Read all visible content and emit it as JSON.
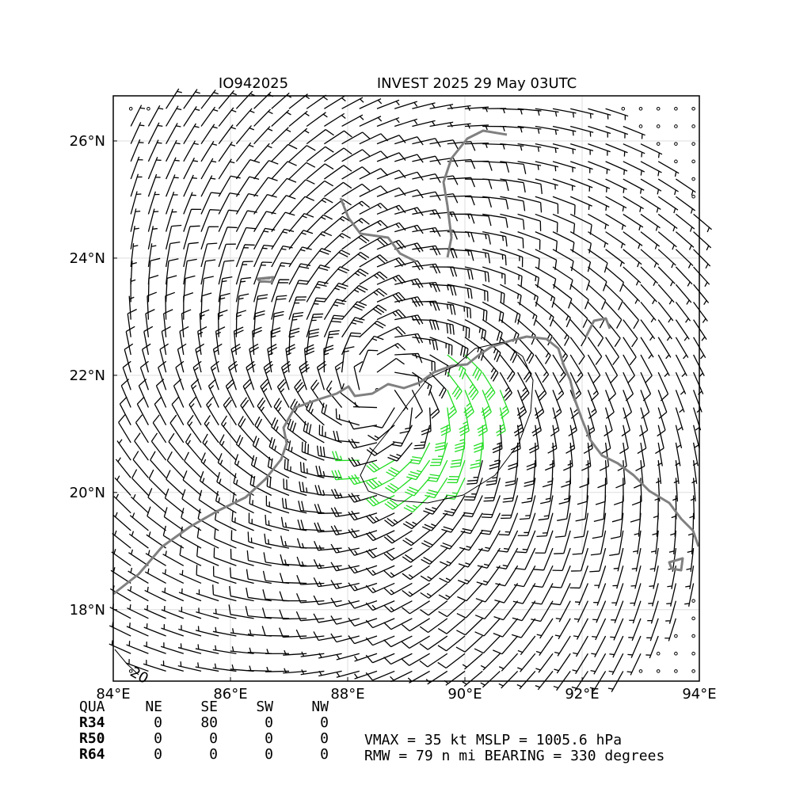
{
  "title_left": "IO942025",
  "title_right": "INVEST 2025 29 May 03UTC",
  "map": {
    "xlim": [
      84,
      94
    ],
    "ylim": [
      16.78,
      26.77
    ],
    "xticks": [
      {
        "value": 84,
        "label": "84°E"
      },
      {
        "value": 86,
        "label": "86°E"
      },
      {
        "value": 88,
        "label": "88°E"
      },
      {
        "value": 90,
        "label": "90°E"
      },
      {
        "value": 92,
        "label": "92°E"
      },
      {
        "value": 94,
        "label": "94°E"
      }
    ],
    "yticks": [
      {
        "value": 18,
        "label": "18°N"
      },
      {
        "value": 20,
        "label": "20°N"
      },
      {
        "value": 22,
        "label": "22°N"
      },
      {
        "value": 24,
        "label": "24°N"
      },
      {
        "value": 26,
        "label": "26°N"
      }
    ],
    "grid": true,
    "contour_label": "20"
  },
  "table": {
    "header": [
      "QUA",
      "NE",
      "SE",
      "SW",
      "NW"
    ],
    "rows": [
      [
        "R34",
        0,
        80,
        0,
        0
      ],
      [
        "R50",
        0,
        0,
        0,
        0
      ],
      [
        "R64",
        0,
        0,
        0,
        0
      ]
    ]
  },
  "info": [
    "VMAX =  35 kt MSLP = 1005.6 hPa",
    "RMW =  79 n mi BEARING = 330 degrees"
  ]
}
